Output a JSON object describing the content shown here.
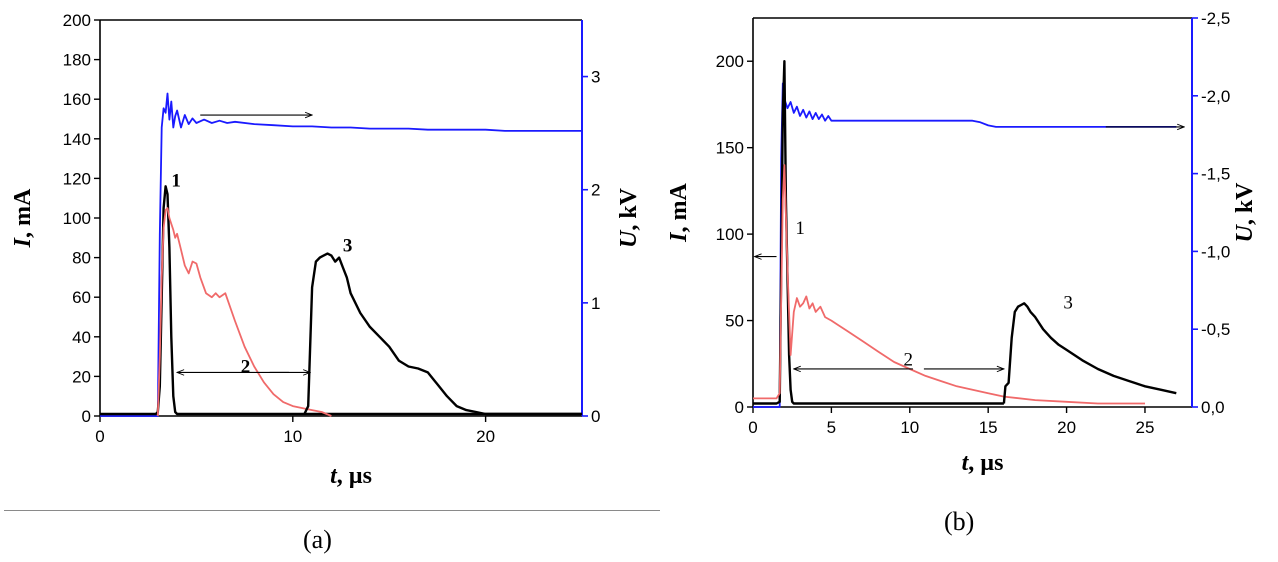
{
  "chart_data": [
    {
      "type": "line",
      "panel_label": "(a)",
      "xlabel_var": "t",
      "xlabel_unit": ", µs",
      "ylabel_var": "I",
      "ylabel_unit": ", mA",
      "y2label_var": "U",
      "y2label_unit": ", kV",
      "xlim": [
        0,
        25
      ],
      "ylim": [
        0,
        200
      ],
      "y2lim": [
        0,
        3.5
      ],
      "xticks": [
        "0",
        "10",
        "20"
      ],
      "xtick_values": [
        0,
        10,
        20
      ],
      "yticks": [
        "0",
        "20",
        "40",
        "60",
        "80",
        "100",
        "120",
        "140",
        "160",
        "180",
        "200"
      ],
      "ytick_values": [
        0,
        20,
        40,
        60,
        80,
        100,
        120,
        140,
        160,
        180,
        200
      ],
      "y2ticks": [
        "0",
        "1",
        "2",
        "3"
      ],
      "y2tick_values": [
        0,
        1,
        2,
        3
      ],
      "colors": {
        "voltage": "#1a1aff",
        "current": "#000000",
        "current2": "#f06a6a"
      },
      "series": [
        {
          "axis": "right",
          "color": "#1a1aff",
          "x": [
            0,
            3.0,
            3.1,
            3.2,
            3.3,
            3.4,
            3.5,
            3.6,
            3.7,
            3.8,
            3.9,
            4.0,
            4.2,
            4.4,
            4.6,
            4.8,
            5.0,
            5.4,
            5.8,
            6.2,
            6.6,
            7.0,
            8,
            9,
            10,
            11,
            12,
            13,
            14,
            15,
            16,
            17,
            18,
            19,
            20,
            21,
            22,
            23,
            24,
            25
          ],
          "y": [
            0,
            0,
            1.6,
            2.55,
            2.72,
            2.68,
            2.85,
            2.62,
            2.78,
            2.55,
            2.65,
            2.7,
            2.55,
            2.66,
            2.58,
            2.63,
            2.59,
            2.62,
            2.59,
            2.61,
            2.59,
            2.6,
            2.58,
            2.57,
            2.56,
            2.56,
            2.55,
            2.55,
            2.54,
            2.54,
            2.54,
            2.53,
            2.53,
            2.53,
            2.53,
            2.52,
            2.52,
            2.52,
            2.52,
            2.52
          ]
        },
        {
          "axis": "left",
          "label": "1",
          "color": "#000000",
          "x": [
            0,
            1,
            2,
            2.9,
            3.0,
            3.1,
            3.2,
            3.3,
            3.4,
            3.5,
            3.6,
            3.7,
            3.8,
            3.9,
            4.0,
            4.2,
            5,
            8,
            12,
            16,
            18,
            20,
            22,
            25
          ],
          "y": [
            1,
            1,
            1,
            1,
            2,
            15,
            60,
            105,
            116,
            112,
            85,
            40,
            10,
            2,
            1,
            1,
            1,
            1,
            1,
            1,
            1,
            1,
            1,
            1
          ]
        },
        {
          "axis": "left",
          "label": "2",
          "color": "#f06a6a",
          "x": [
            3.0,
            3.1,
            3.2,
            3.3,
            3.4,
            3.5,
            3.6,
            3.7,
            3.8,
            3.9,
            4.0,
            4.2,
            4.4,
            4.6,
            4.8,
            5.0,
            5.2,
            5.5,
            5.8,
            6.0,
            6.2,
            6.5,
            7.0,
            7.5,
            8.0,
            8.5,
            9,
            9.5,
            10,
            10.5,
            11,
            11.5,
            12
          ],
          "y": [
            0,
            30,
            70,
            95,
            104,
            105,
            100,
            97,
            94,
            90,
            92,
            84,
            76,
            72,
            78,
            77,
            70,
            62,
            60,
            62,
            60,
            62,
            48,
            35,
            25,
            17,
            11,
            7,
            5,
            4,
            3,
            2,
            0
          ]
        },
        {
          "axis": "left",
          "label": "3",
          "color": "#000000",
          "x": [
            10.6,
            10.8,
            11.0,
            11.2,
            11.4,
            11.6,
            11.8,
            12.0,
            12.2,
            12.4,
            12.6,
            12.8,
            13.0,
            13.5,
            14,
            14.5,
            15,
            15.5,
            16,
            16.5,
            17,
            17.5,
            18,
            18.5,
            19,
            19.5,
            20,
            21,
            22,
            23,
            24,
            25
          ],
          "y": [
            1,
            5,
            65,
            78,
            80,
            81,
            82,
            81,
            78,
            80,
            75,
            70,
            62,
            52,
            45,
            40,
            35,
            28,
            25,
            24,
            22,
            16,
            10,
            5,
            3,
            2,
            1,
            1,
            1,
            1,
            1,
            1
          ]
        }
      ],
      "curve_labels": [
        {
          "text": "1",
          "x": 3.7,
          "y": 116
        },
        {
          "text": "2",
          "x": 7.3,
          "y": 22
        },
        {
          "text": "3",
          "x": 12.6,
          "y": 83
        }
      ],
      "arrows": [
        {
          "from": [
            5.2,
            2.66
          ],
          "to": [
            11.0,
            2.66
          ],
          "axis": "right"
        },
        {
          "from": [
            9.8,
            22
          ],
          "to": [
            4.0,
            22
          ],
          "axis": "left"
        },
        {
          "from": [
            8.8,
            22
          ],
          "to": [
            10.9,
            22
          ],
          "axis": "left"
        }
      ]
    },
    {
      "type": "line",
      "panel_label": "(b)",
      "xlabel_var": "t",
      "xlabel_unit": ", µs",
      "ylabel_var": "I",
      "ylabel_unit": ", mA",
      "y2label_var": "U",
      "y2label_unit": ", kV",
      "xlim": [
        0,
        28
      ],
      "ylim": [
        0,
        225
      ],
      "y2lim": [
        0,
        -2.5
      ],
      "xticks": [
        "0",
        "5",
        "10",
        "15",
        "20",
        "25"
      ],
      "xtick_values": [
        0,
        5,
        10,
        15,
        20,
        25
      ],
      "yticks": [
        "0",
        "50",
        "100",
        "150",
        "200"
      ],
      "ytick_values": [
        0,
        50,
        100,
        150,
        200
      ],
      "y2ticks": [
        "0,0",
        "-0,5",
        "-1,0",
        "-1,5",
        "-2,0",
        "-2,5"
      ],
      "y2tick_values": [
        0,
        -0.5,
        -1.0,
        -1.5,
        -2.0,
        -2.5
      ],
      "colors": {
        "voltage": "#1a1aff",
        "current": "#000000",
        "current2": "#f06a6a"
      },
      "series": [
        {
          "axis": "right",
          "color": "#1a1aff",
          "x": [
            0,
            1.7,
            1.8,
            1.9,
            2.0,
            2.1,
            2.2,
            2.4,
            2.6,
            2.8,
            3.0,
            3.2,
            3.4,
            3.6,
            3.8,
            4.0,
            4.2,
            4.4,
            4.6,
            4.8,
            5.0,
            5.5,
            6,
            8,
            10,
            12,
            14,
            14.5,
            15,
            15.5,
            16,
            18,
            20,
            22,
            24,
            26,
            27
          ],
          "y": [
            0,
            0,
            -1.6,
            -2.08,
            -1.98,
            -1.95,
            -1.92,
            -1.96,
            -1.89,
            -1.93,
            -1.87,
            -1.91,
            -1.86,
            -1.9,
            -1.85,
            -1.89,
            -1.85,
            -1.88,
            -1.84,
            -1.87,
            -1.84,
            -1.84,
            -1.84,
            -1.84,
            -1.84,
            -1.84,
            -1.84,
            -1.83,
            -1.81,
            -1.8,
            -1.8,
            -1.8,
            -1.8,
            -1.8,
            -1.8,
            -1.8,
            -1.8
          ]
        },
        {
          "axis": "left",
          "label": "1",
          "color": "#000000",
          "x": [
            0,
            0.5,
            1.0,
            1.5,
            1.7,
            1.8,
            1.9,
            2.0,
            2.1,
            2.2,
            2.3,
            2.4,
            2.5,
            2.6,
            3,
            5,
            8,
            10,
            12,
            14,
            16
          ],
          "y": [
            2,
            2,
            2,
            2,
            3,
            80,
            170,
            200,
            120,
            75,
            30,
            10,
            3,
            2,
            2,
            2,
            2,
            2,
            2,
            2,
            2
          ]
        },
        {
          "axis": "left",
          "label": "2",
          "color": "#f06a6a",
          "x": [
            0,
            1.5,
            1.7,
            1.9,
            2.0,
            2.2,
            2.4,
            2.6,
            2.8,
            3.0,
            3.2,
            3.4,
            3.6,
            3.8,
            4.0,
            4.3,
            4.6,
            5,
            5.5,
            6,
            7,
            8,
            9,
            10,
            11,
            12,
            13,
            14,
            15,
            16,
            18,
            20,
            22,
            25
          ],
          "y": [
            5,
            5,
            8,
            120,
            140,
            80,
            30,
            55,
            63,
            58,
            60,
            64,
            57,
            60,
            55,
            58,
            52,
            50,
            47,
            44,
            38,
            32,
            26,
            22,
            18,
            15,
            12,
            10,
            8,
            6,
            4,
            3,
            2,
            2
          ]
        },
        {
          "axis": "left",
          "label": "3",
          "color": "#000000",
          "x": [
            16,
            16.1,
            16.3,
            16.5,
            16.7,
            16.9,
            17.1,
            17.3,
            17.5,
            17.7,
            18,
            18.5,
            19,
            19.5,
            20,
            21,
            22,
            23,
            24,
            25,
            26,
            27
          ],
          "y": [
            2,
            12,
            14,
            40,
            55,
            58,
            59,
            60,
            58,
            55,
            52,
            45,
            40,
            36,
            33,
            27,
            22,
            18,
            15,
            12,
            10,
            8
          ]
        }
      ],
      "curve_labels": [
        {
          "text": "1",
          "x": 2.7,
          "y": 100
        },
        {
          "text": "2",
          "x": 9.6,
          "y": 24
        },
        {
          "text": "3",
          "x": 19.8,
          "y": 57
        }
      ],
      "arrows": [
        {
          "from": [
            1.5,
            87
          ],
          "to": [
            0.1,
            87
          ],
          "axis": "left"
        },
        {
          "from": [
            10.2,
            22
          ],
          "to": [
            2.6,
            22
          ],
          "axis": "left"
        },
        {
          "from": [
            10.9,
            22
          ],
          "to": [
            16.0,
            22
          ],
          "axis": "left"
        },
        {
          "from": [
            22.5,
            -1.8
          ],
          "to": [
            27.5,
            -1.8
          ],
          "axis": "right"
        }
      ]
    }
  ]
}
